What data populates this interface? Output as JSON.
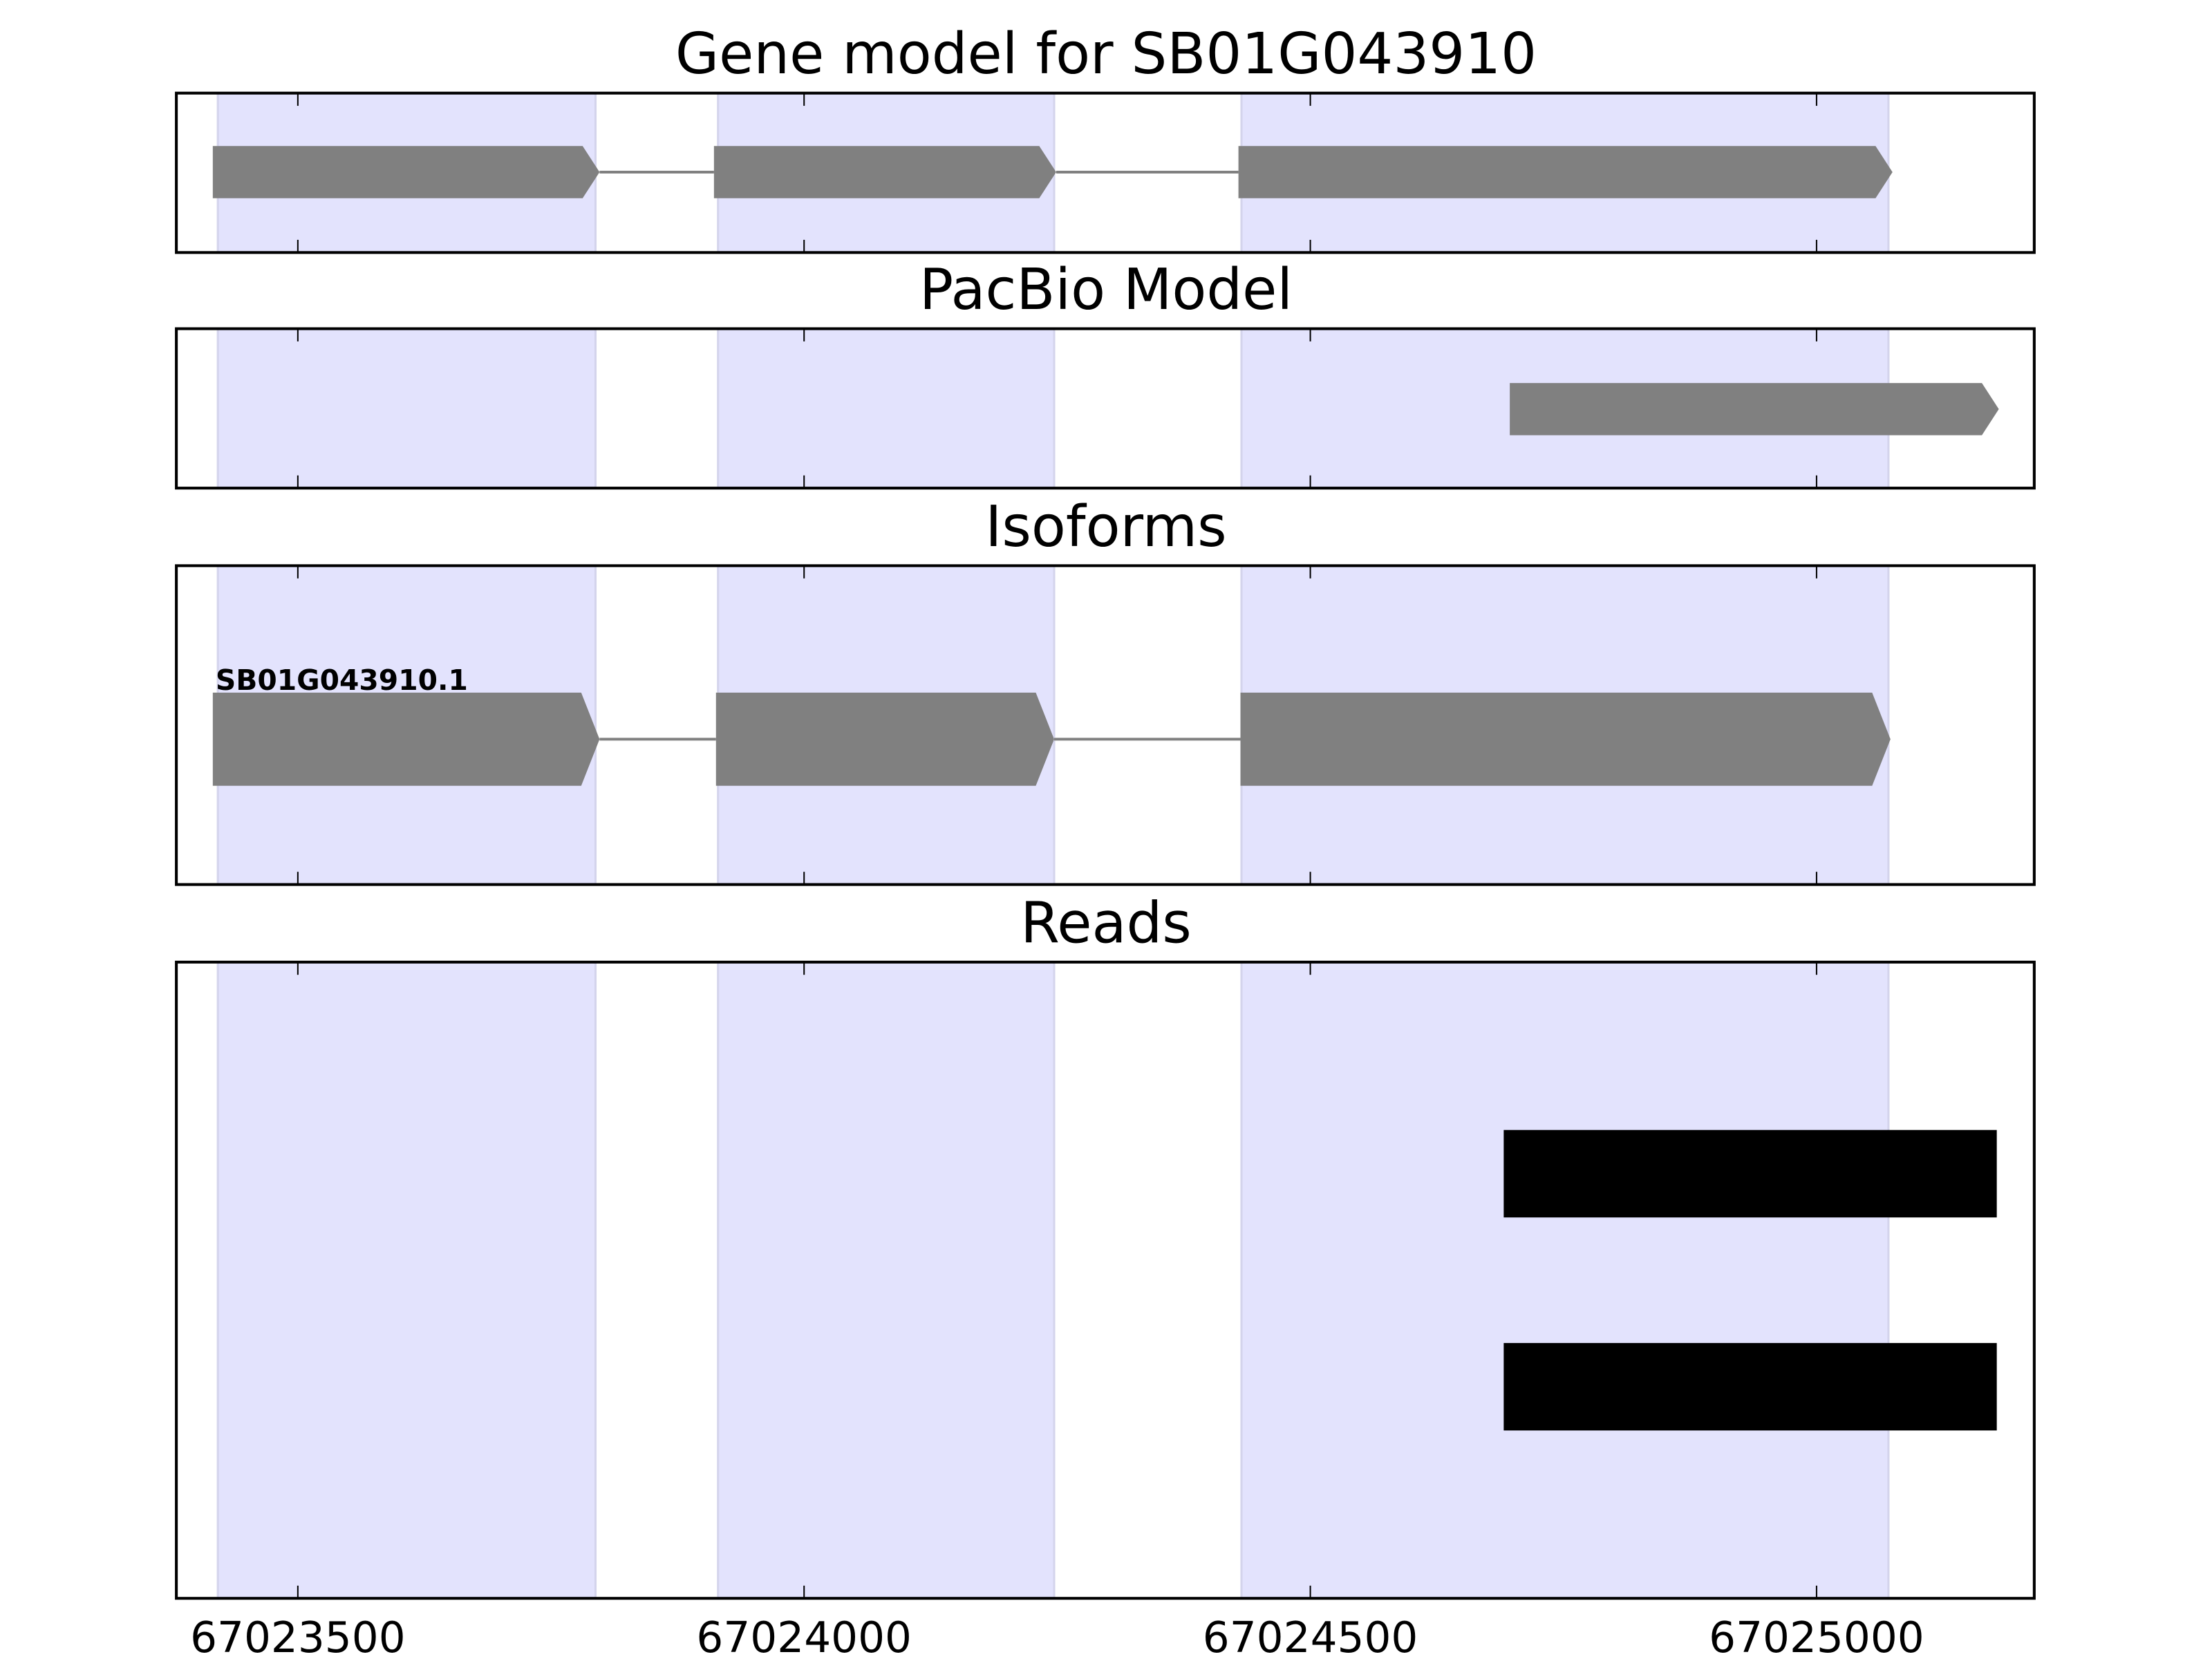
{
  "chart_data": {
    "type": "gene-track",
    "xlim": [
      67023380,
      67025215
    ],
    "xticks": [
      67023500,
      67024000,
      67024500,
      67025000
    ],
    "xtick_labels": [
      "67023500",
      "67024000",
      "67024500",
      "67025000"
    ],
    "exon_shading": {
      "color": "#e3e3fd",
      "regions": [
        [
          67023421,
          67023794
        ],
        [
          67023915,
          67024247
        ],
        [
          67024432,
          67025071
        ]
      ]
    },
    "panels": [
      {
        "title": "Gene model for SB01G043910",
        "kind": "model",
        "color": "#808080",
        "strand": "+",
        "exons": [
          [
            67023416,
            67023798
          ],
          [
            67023911,
            67024249
          ],
          [
            67024429,
            67025075
          ]
        ]
      },
      {
        "title": "PacBio Model",
        "kind": "model",
        "color": "#808080",
        "strand": "+",
        "exons": [
          [
            67024697,
            67025180
          ]
        ]
      },
      {
        "title": "Isoforms",
        "kind": "isoform",
        "color": "#808080",
        "strand": "+",
        "label": "SB01G043910.1",
        "exons": [
          [
            67023416,
            67023798
          ],
          [
            67023913,
            67024247
          ],
          [
            67024431,
            67025073
          ]
        ]
      },
      {
        "title": "Reads",
        "kind": "reads",
        "color": "#000000",
        "reads": [
          [
            67024691,
            67025178
          ],
          [
            67024691,
            67025178
          ]
        ]
      }
    ]
  }
}
